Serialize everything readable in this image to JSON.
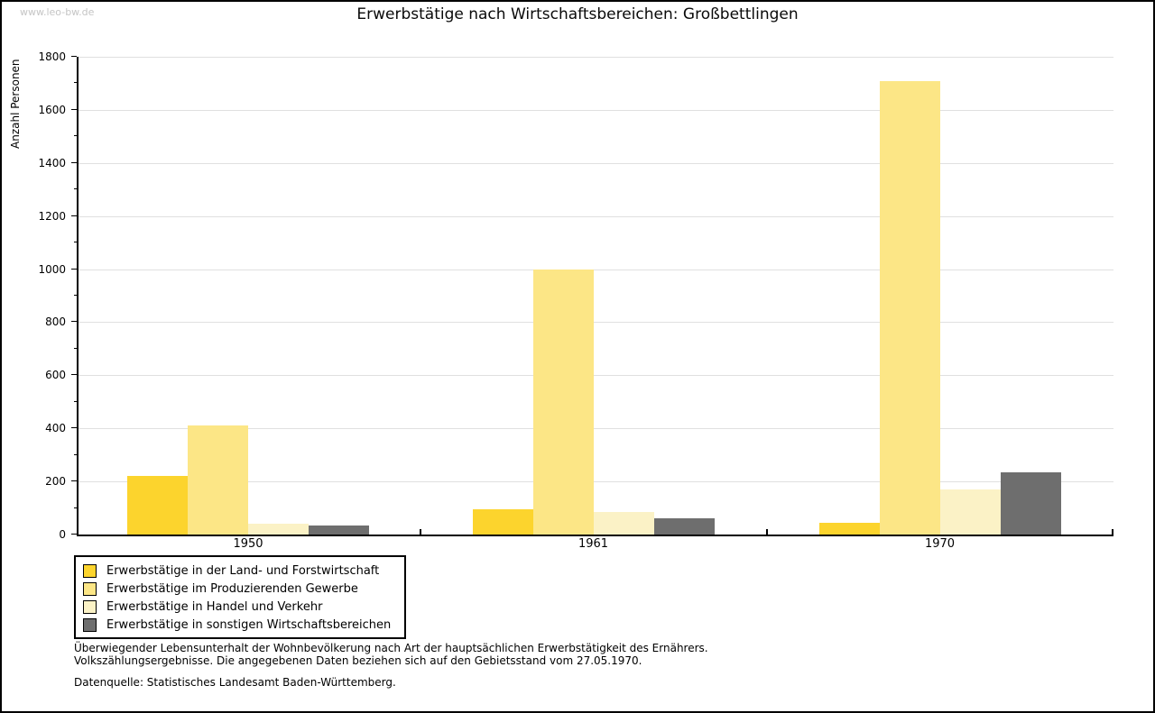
{
  "page": {
    "watermark": "www.leo-bw.de"
  },
  "chart_data": {
    "type": "bar",
    "title": "Erwerbstätige nach Wirtschaftsbereichen: Großbettlingen",
    "ylabel": "Anzahl Personen",
    "xlabel": "",
    "categories": [
      "1950",
      "1961",
      "1970"
    ],
    "series": [
      {
        "name": "Erwerbstätige in der Land- und Forstwirtschaft",
        "color": "#fcd42d",
        "values": [
          220,
          95,
          45
        ]
      },
      {
        "name": "Erwerbstätige im Produzierenden Gewerbe",
        "color": "#fce686",
        "values": [
          410,
          1000,
          1710
        ]
      },
      {
        "name": "Erwerbstätige in Handel und Verkehr",
        "color": "#fbf2c6",
        "values": [
          40,
          85,
          170
        ]
      },
      {
        "name": "Erwerbstätige in sonstigen Wirtschaftsbereichen",
        "color": "#6e6e6e",
        "values": [
          35,
          60,
          235
        ]
      }
    ],
    "ylim": [
      0,
      1800
    ],
    "ytick_step": 200,
    "yminor_step": 100,
    "grid": true,
    "gridline_color": "#e0e0e0",
    "legend_position": "bottom-left"
  },
  "footnotes": {
    "line1": "Überwiegender Lebensunterhalt der Wohnbevölkerung nach Art der hauptsächlichen Erwerbstätigkeit des Ernährers.",
    "line2": "Volkszählungsergebnisse. Die angegebenen Daten beziehen sich auf den Gebietsstand vom 27.05.1970.",
    "source": "Datenquelle: Statistisches Landesamt Baden-Württemberg."
  }
}
